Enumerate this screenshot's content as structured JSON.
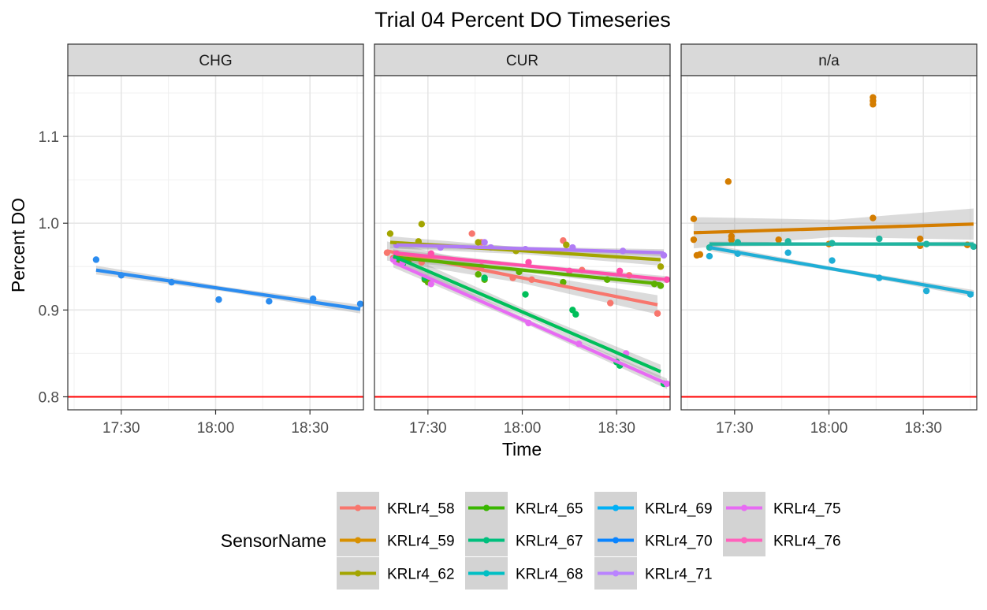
{
  "chart_data": {
    "type": "scatter",
    "title": "Trial 04 Percent DO Timeseries",
    "xlabel": "Time",
    "ylabel": "Percent DO",
    "x_unit": "minutes after 17:00 (clock time)",
    "xlim": [
      13,
      107
    ],
    "ylim": [
      0.785,
      1.17
    ],
    "x_ticks": [
      {
        "value": 30,
        "label": "17:30"
      },
      {
        "value": 60,
        "label": "18:00"
      },
      {
        "value": 90,
        "label": "18:30"
      }
    ],
    "y_ticks": [
      {
        "value": 0.8,
        "label": "0.8"
      },
      {
        "value": 0.9,
        "label": "0.9"
      },
      {
        "value": 1.0,
        "label": "1.0"
      },
      {
        "value": 1.1,
        "label": "1.1"
      }
    ],
    "grid": true,
    "reference_line": {
      "y": 0.8,
      "color": "#ff0000"
    },
    "legend": {
      "title": "SensorName",
      "position": "bottom",
      "ncol": 4
    },
    "colors": {
      "KRLr4_58": "#f8766d",
      "KRLr4_59": "#d89000",
      "KRLr4_62": "#a3a500",
      "KRLr4_65": "#39b600",
      "KRLr4_67": "#00bf7d",
      "KRLr4_68": "#00bfc4",
      "KRLr4_69": "#00b0f6",
      "KRLr4_70": "#0a84ff",
      "KRLr4_71": "#b983ff",
      "KRLr4_75": "#e76bf3",
      "KRLr4_76": "#ff62bc"
    },
    "legend_order": [
      "KRLr4_58",
      "KRLr4_65",
      "KRLr4_69",
      "KRLr4_75",
      "KRLr4_59",
      "KRLr4_67",
      "KRLr4_70",
      "KRLr4_76",
      "KRLr4_62",
      "KRLr4_68",
      "KRLr4_71"
    ],
    "panels": [
      {
        "label": "CHG",
        "series": [
          {
            "name": "KRLr4_70",
            "color": "#2b8cf0",
            "x": [
              22,
              30,
              46,
              61,
              77,
              91,
              106
            ],
            "y": [
              0.958,
              0.94,
              0.932,
              0.912,
              0.91,
              0.913,
              0.907
            ],
            "fit": [
              [
                22,
                0.946
              ],
              [
                106,
                0.901
              ]
            ],
            "se": 0.005
          }
        ]
      },
      {
        "label": "CUR",
        "series": [
          {
            "name": "KRLr4_58",
            "color": "#f8766d",
            "x": [
              17,
              19,
              21,
              28,
              44,
              47,
              57,
              63,
              73,
              79,
              88,
              94,
              103
            ],
            "y": [
              0.966,
              0.96,
              0.962,
              0.955,
              0.988,
              0.978,
              0.937,
              0.935,
              0.98,
              0.946,
              0.908,
              0.94,
              0.896
            ],
            "fit": [
              [
                17,
                0.968
              ],
              [
                103,
                0.906
              ]
            ],
            "se": 0.011
          },
          {
            "name": "KRLr4_62",
            "color": "#a3a500",
            "x": [
              18,
              27,
              28,
              46,
              58,
              74,
              104
            ],
            "y": [
              0.988,
              0.979,
              0.999,
              0.978,
              0.968,
              0.975,
              0.95
            ],
            "fit": [
              [
                18,
                0.978
              ],
              [
                104,
                0.958
              ]
            ],
            "se": 0.007
          },
          {
            "name": "KRLr4_65",
            "color": "#5cb000",
            "x": [
              20,
              22,
              24,
              29,
              30,
              46,
              48,
              59,
              73,
              87,
              102,
              104
            ],
            "y": [
              0.956,
              0.955,
              0.958,
              0.935,
              0.932,
              0.941,
              0.935,
              0.944,
              0.932,
              0.935,
              0.93,
              0.928
            ],
            "fit": [
              [
                19,
                0.961
              ],
              [
                104,
                0.93
              ]
            ],
            "se": 0.005
          },
          {
            "name": "KRLr4_67",
            "color": "#00bf5a",
            "x": [
              20,
              22,
              29,
              48,
              61,
              76,
              77,
              90,
              91,
              105
            ],
            "y": [
              0.96,
              0.953,
              0.937,
              0.937,
              0.918,
              0.9,
              0.895,
              0.84,
              0.836,
              0.815
            ],
            "fit": [
              [
                19,
                0.962
              ],
              [
                104,
                0.829
              ]
            ],
            "se": 0.008
          },
          {
            "name": "KRLr4_71",
            "color": "#b07cf5",
            "x": [
              20,
              34,
              48,
              50,
              61,
              76,
              92,
              105
            ],
            "y": [
              0.975,
              0.972,
              0.978,
              0.972,
              0.97,
              0.972,
              0.968,
              0.963
            ],
            "fit": [
              [
                20,
                0.975
              ],
              [
                105,
                0.966
              ]
            ],
            "se": 0.004
          },
          {
            "name": "KRLr4_75",
            "color": "#e76bf3",
            "x": [
              19,
              22,
              31,
              62,
              78,
              93,
              106
            ],
            "y": [
              0.958,
              0.955,
              0.93,
              0.885,
              0.861,
              0.85,
              0.815
            ],
            "fit": [
              [
                19,
                0.955
              ],
              [
                106,
                0.815
              ]
            ],
            "se": 0.006
          },
          {
            "name": "KRLr4_76",
            "color": "#ff4faa",
            "x": [
              20,
              25,
              31,
              47,
              62,
              75,
              91,
              106
            ],
            "y": [
              0.965,
              0.96,
              0.965,
              0.95,
              0.955,
              0.945,
              0.945,
              0.935
            ],
            "fit": [
              [
                19,
                0.966
              ],
              [
                106,
                0.935
              ]
            ],
            "se": 0.004
          }
        ]
      },
      {
        "label": "n/a",
        "series": [
          {
            "name": "KRLr4_59",
            "color": "#d47d00",
            "x": [
              17,
              17,
              18,
              19,
              28,
              29,
              29,
              44,
              60,
              74,
              74,
              74,
              74,
              89,
              89,
              104
            ],
            "y": [
              1.005,
              0.981,
              0.963,
              0.964,
              1.048,
              0.985,
              0.981,
              0.981,
              0.976,
              1.145,
              1.141,
              1.137,
              1.006,
              0.982,
              0.974,
              0.975
            ],
            "fit": [
              [
                17,
                0.989
              ],
              [
                106,
                0.999
              ]
            ],
            "se": 0.018
          },
          {
            "name": "KRLr4_68",
            "color": "#1fb5a0",
            "x": [
              22,
              31,
              47,
              61,
              76,
              91,
              106
            ],
            "y": [
              0.972,
              0.978,
              0.979,
              0.977,
              0.982,
              0.976,
              0.973
            ],
            "fit": [
              [
                22,
                0.976
              ],
              [
                106,
                0.976
              ]
            ],
            "se": 0.003
          },
          {
            "name": "KRLr4_69",
            "color": "#1faed6",
            "x": [
              22,
              31,
              47,
              61,
              76,
              91,
              105
            ],
            "y": [
              0.962,
              0.965,
              0.966,
              0.957,
              0.937,
              0.922,
              0.918
            ],
            "fit": [
              [
                22,
                0.972
              ],
              [
                106,
                0.919
              ]
            ],
            "se": 0.004
          }
        ]
      }
    ]
  }
}
